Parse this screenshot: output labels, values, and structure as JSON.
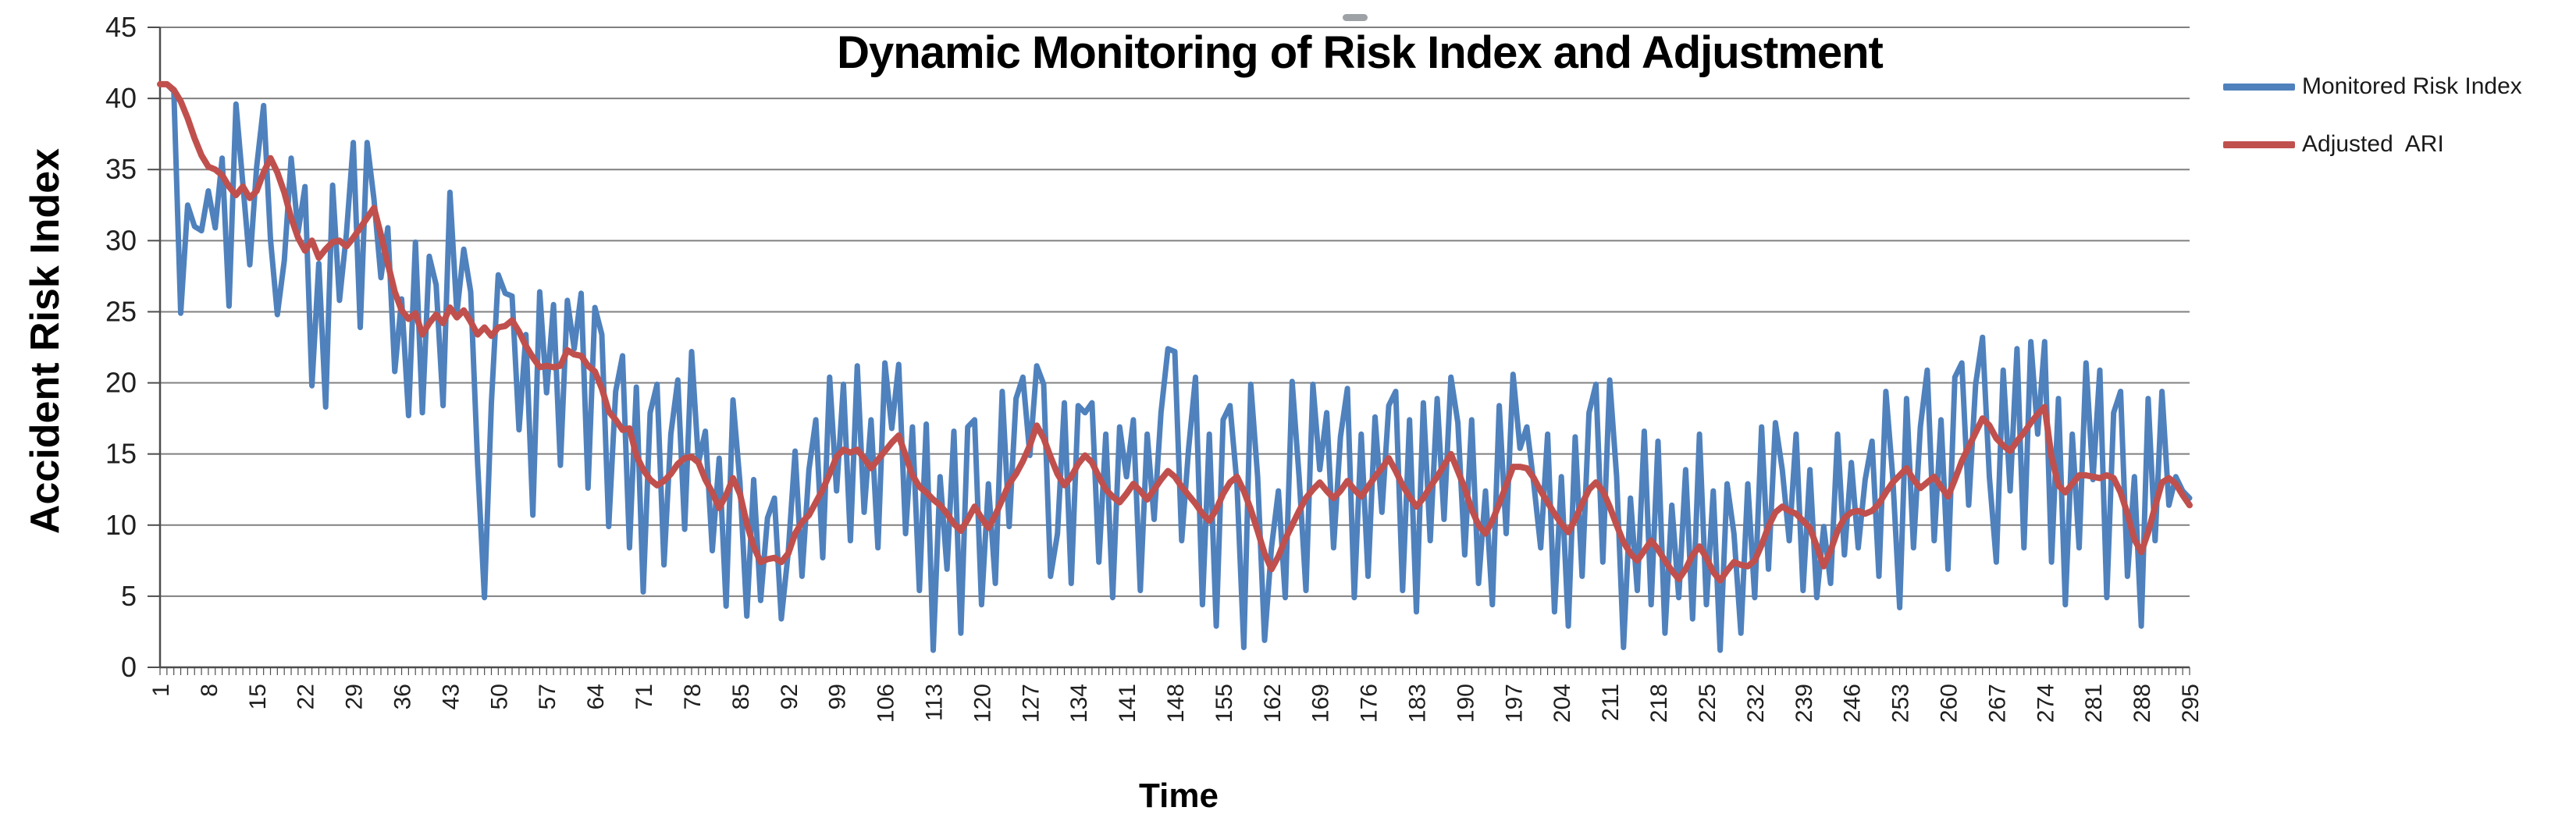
{
  "chart_data": {
    "type": "line",
    "title": "Dynamic Monitoring of Risk Index and Adjustment",
    "xlabel": "Time",
    "ylabel": "Accident Risk Index",
    "ylim": [
      0,
      45
    ],
    "y_ticks": [
      0,
      5,
      10,
      15,
      20,
      25,
      30,
      35,
      40,
      45
    ],
    "x_start": 1,
    "x_step": 1,
    "x_ticks": [
      1,
      8,
      15,
      22,
      29,
      36,
      43,
      50,
      57,
      64,
      71,
      78,
      85,
      92,
      99,
      106,
      113,
      120,
      127,
      134,
      141,
      148,
      155,
      162,
      169,
      176,
      183,
      190,
      197,
      204,
      211,
      218,
      225,
      232,
      239,
      246,
      253,
      260,
      267,
      274,
      281,
      288,
      295
    ],
    "grid": true,
    "legend_position": "right",
    "series": [
      {
        "name": "Monitored Risk Index",
        "color": "#4F81BD",
        "values": [
          41,
          41,
          40.5,
          24.9,
          32.5,
          31,
          30.7,
          33.5,
          30.9,
          35.8,
          25.4,
          39.6,
          34,
          28.3,
          35.2,
          39.5,
          30.1,
          24.8,
          28.6,
          35.8,
          30.6,
          33.8,
          19.8,
          28.4,
          18.3,
          33.9,
          25.8,
          30.5,
          36.9,
          23.9,
          36.9,
          32.9,
          27.4,
          30.9,
          20.8,
          25.9,
          17.7,
          29.9,
          17.9,
          28.9,
          26.9,
          18.4,
          33.4,
          24.9,
          29.4,
          26.4,
          14.4,
          4.9,
          18.6,
          27.6,
          26.3,
          26.1,
          16.7,
          23.4,
          10.7,
          26.4,
          19.3,
          25.5,
          14.2,
          25.8,
          22.4,
          26.3,
          12.6,
          25.3,
          23.4,
          9.9,
          19.4,
          21.9,
          8.4,
          19.7,
          5.3,
          17.9,
          19.9,
          7.2,
          16.4,
          20.2,
          9.7,
          22.2,
          14.4,
          16.6,
          8.2,
          14.7,
          4.3,
          18.8,
          13,
          3.6,
          13.2,
          4.7,
          10.5,
          11.9,
          3.4,
          8.1,
          15.2,
          6.4,
          13.9,
          17.4,
          7.7,
          20.4,
          12.4,
          19.9,
          8.9,
          21.2,
          10.9,
          17.4,
          8.4,
          21.4,
          16.8,
          21.3,
          9.4,
          16.9,
          5.4,
          17.1,
          1.2,
          13.4,
          6.9,
          16.6,
          2.4,
          16.9,
          17.4,
          4.4,
          12.9,
          5.9,
          19.4,
          9.9,
          18.9,
          20.4,
          14.9,
          21.2,
          19.9,
          6.4,
          9.4,
          18.6,
          5.9,
          18.4,
          17.9,
          18.6,
          7.4,
          16.4,
          4.9,
          16.9,
          13.4,
          17.4,
          5.4,
          16.4,
          10.4,
          17.9,
          22.4,
          22.2,
          8.9,
          15.4,
          20.4,
          4.4,
          16.4,
          2.9,
          17.4,
          18.4,
          12.9,
          1.4,
          19.9,
          13.4,
          1.9,
          8.4,
          12.4,
          4.9,
          20.1,
          13.4,
          5.4,
          19.9,
          13.9,
          17.9,
          8.4,
          16.2,
          19.6,
          4.9,
          16.4,
          6.4,
          17.6,
          10.9,
          18.4,
          19.4,
          5.4,
          17.4,
          3.9,
          18.6,
          8.9,
          18.9,
          10.4,
          20.4,
          17.2,
          7.9,
          17.4,
          5.9,
          12.4,
          4.4,
          18.4,
          9.4,
          20.6,
          15.4,
          16.9,
          12.9,
          8.4,
          16.4,
          3.9,
          13.4,
          2.9,
          16.2,
          6.4,
          17.9,
          19.9,
          7.4,
          20.2,
          13.4,
          1.4,
          11.9,
          5.4,
          16.6,
          4.4,
          15.9,
          2.4,
          11.4,
          4.9,
          13.9,
          3.4,
          16.4,
          4.4,
          12.4,
          1.2,
          12.9,
          9.4,
          2.4,
          12.9,
          4.9,
          16.9,
          6.9,
          17.2,
          13.9,
          8.9,
          16.4,
          5.4,
          13.9,
          4.9,
          9.9,
          5.9,
          16.4,
          7.9,
          14.4,
          8.4,
          13.2,
          15.9,
          6.4,
          19.4,
          13.4,
          4.2,
          18.9,
          8.4,
          16.9,
          20.9,
          8.9,
          17.4,
          6.9,
          20.4,
          21.4,
          11.4,
          19.9,
          23.2,
          13.4,
          7.4,
          20.9,
          12.4,
          22.4,
          8.4,
          22.9,
          16.4,
          22.9,
          7.4,
          18.9,
          4.4,
          16.4,
          8.4,
          21.4,
          13.2,
          20.9,
          4.9,
          17.9,
          19.4,
          6.4,
          13.4,
          2.9,
          18.9,
          8.9,
          19.4,
          11.4,
          13.4,
          12.4,
          11.9
        ]
      },
      {
        "name": "Adjusted  ARI",
        "color": "#C0504D",
        "values": [
          41,
          41,
          40.6,
          39.8,
          38.6,
          37.2,
          36,
          35.2,
          35,
          34.6,
          33.8,
          33.2,
          33.8,
          33,
          33.5,
          34.8,
          35.8,
          34.8,
          33.4,
          31.6,
          30.2,
          29.3,
          30,
          28.8,
          29.4,
          29.9,
          30,
          29.6,
          30.2,
          30.9,
          31.6,
          32.3,
          30.4,
          28.4,
          26.4,
          25.1,
          24.5,
          24.9,
          23.4,
          24.2,
          24.8,
          24.2,
          25.3,
          24.6,
          25.1,
          24.3,
          23.4,
          23.9,
          23.3,
          23.9,
          24,
          24.4,
          23.6,
          22.6,
          21.8,
          21.1,
          21.2,
          21.1,
          21.2,
          22.3,
          22,
          21.9,
          21.2,
          20.8,
          19.6,
          18,
          17.4,
          16.7,
          16.8,
          14.9,
          13.9,
          13.2,
          12.8,
          13.1,
          13.6,
          14.3,
          14.7,
          14.8,
          14.4,
          13.2,
          12.3,
          11.2,
          12.1,
          13.3,
          12.2,
          10.1,
          8.5,
          7.4,
          7.6,
          7.7,
          7.4,
          8,
          9.4,
          10.2,
          10.7,
          11.6,
          12.5,
          13.6,
          14.8,
          15.3,
          15.1,
          15.3,
          14.7,
          14,
          14.6,
          15.2,
          15.8,
          16.3,
          14.9,
          13.5,
          12.7,
          12.3,
          11.8,
          11.4,
          10.8,
          10.1,
          9.6,
          10.4,
          11.3,
          10.5,
          9.8,
          10.7,
          11.8,
          12.9,
          13.6,
          14.5,
          15.6,
          17,
          16.1,
          14.8,
          13.6,
          12.8,
          13.4,
          14.3,
          14.9,
          14.4,
          13.4,
          12.5,
          12,
          11.6,
          12.2,
          12.9,
          12.4,
          11.8,
          12.5,
          13.2,
          13.8,
          13.4,
          12.7,
          12.1,
          11.5,
          10.8,
          10.3,
          11.1,
          12.2,
          13,
          13.4,
          12.4,
          11.1,
          9.6,
          8,
          6.9,
          7.8,
          9,
          10,
          11,
          11.9,
          12.5,
          13,
          12.4,
          11.9,
          12.4,
          13.1,
          12.5,
          12,
          12.7,
          13.4,
          14,
          14.7,
          13.8,
          12.8,
          12,
          11.3,
          11.9,
          12.7,
          13.4,
          14.2,
          15,
          13.8,
          12.6,
          11.1,
          10,
          9.4,
          10.3,
          11.5,
          12.8,
          14.1,
          14.1,
          14,
          13.3,
          12.4,
          11.6,
          10.8,
          10.1,
          9.5,
          10.4,
          11.5,
          12.5,
          13,
          12.4,
          11.3,
          10,
          8.8,
          8,
          7.5,
          8.2,
          8.9,
          8.3,
          7.5,
          6.8,
          6.2,
          6.9,
          7.9,
          8.5,
          7.7,
          6.7,
          6.1,
          6.8,
          7.4,
          7.2,
          7.1,
          7.5,
          8.6,
          9.9,
          10.9,
          11.3,
          11,
          10.8,
          10.3,
          9.8,
          8.5,
          7.1,
          8.2,
          9.6,
          10.5,
          10.9,
          11,
          10.8,
          11,
          11.5,
          12.3,
          13,
          13.5,
          14,
          13.2,
          12.6,
          13,
          13.4,
          12.7,
          12,
          13.2,
          14.5,
          15.5,
          16.5,
          17.5,
          17,
          16.1,
          15.6,
          15.2,
          15.9,
          16.5,
          17.2,
          17.8,
          18.3,
          14.8,
          12.8,
          12.3,
          12.9,
          13.5,
          13.5,
          13.4,
          13.3,
          13.5,
          13.3,
          12.3,
          10.8,
          9,
          8.1,
          9.5,
          11.3,
          13,
          13.3,
          12.9,
          12.1,
          11.4
        ]
      }
    ],
    "style": {
      "gridline_color": "#808080",
      "axis_color": "#4d4d4d",
      "tick_label_color": "#1f1f1f",
      "background": "#ffffff"
    }
  }
}
